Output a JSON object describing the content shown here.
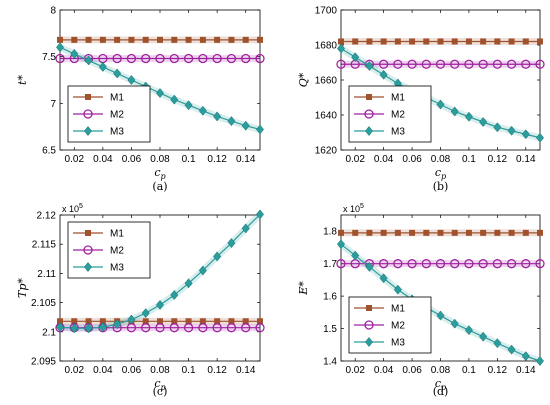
{
  "chart_data": [
    {
      "type": "line",
      "ylabel": "t*",
      "xlabel": "c_p",
      "caption": "(a)",
      "xlim": [
        0.01,
        0.15
      ],
      "ylim": [
        6.5,
        8
      ],
      "xticks": [
        0.02,
        0.04,
        0.06,
        0.08,
        0.1,
        0.12,
        0.14
      ],
      "xtick_labels": [
        "0.02",
        "0.04",
        "0.06",
        "0.08",
        "0.1",
        "0.12",
        "0.14"
      ],
      "yticks": [
        6.5,
        7,
        7.5,
        8
      ],
      "ytick_labels": [
        "6.5",
        "7",
        "7.5",
        "8"
      ],
      "exponent_label": "",
      "legend_position": "lower-left",
      "x": [
        0.01,
        0.02,
        0.03,
        0.04,
        0.05,
        0.06,
        0.07,
        0.08,
        0.09,
        0.1,
        0.11,
        0.12,
        0.13,
        0.14,
        0.15
      ],
      "series": [
        {
          "name": "M1",
          "color": "#a0522d",
          "marker": "square",
          "values": [
            7.68,
            7.68,
            7.68,
            7.68,
            7.68,
            7.68,
            7.68,
            7.68,
            7.68,
            7.68,
            7.68,
            7.68,
            7.68,
            7.68,
            7.68
          ]
        },
        {
          "name": "M2",
          "color": "#a020a0",
          "marker": "circle",
          "values": [
            7.48,
            7.48,
            7.48,
            7.48,
            7.48,
            7.48,
            7.48,
            7.48,
            7.48,
            7.48,
            7.48,
            7.48,
            7.48,
            7.48,
            7.48
          ]
        },
        {
          "name": "M3",
          "color": "#2a9d9d",
          "marker": "diamond",
          "values": [
            7.6,
            7.53,
            7.46,
            7.39,
            7.32,
            7.25,
            7.18,
            7.11,
            7.04,
            6.98,
            6.92,
            6.86,
            6.81,
            6.76,
            6.72
          ]
        }
      ]
    },
    {
      "type": "line",
      "ylabel": "Q*",
      "xlabel": "c_p",
      "caption": "(b)",
      "xlim": [
        0.01,
        0.15
      ],
      "ylim": [
        1620,
        1700
      ],
      "xticks": [
        0.02,
        0.04,
        0.06,
        0.08,
        0.1,
        0.12,
        0.14
      ],
      "xtick_labels": [
        "0.02",
        "0.04",
        "0.06",
        "0.08",
        "0.1",
        "0.12",
        "0.14"
      ],
      "yticks": [
        1620,
        1640,
        1660,
        1680,
        1700
      ],
      "ytick_labels": [
        "1620",
        "1640",
        "1660",
        "1680",
        "1700"
      ],
      "exponent_label": "",
      "legend_position": "lower-left",
      "x": [
        0.01,
        0.02,
        0.03,
        0.04,
        0.05,
        0.06,
        0.07,
        0.08,
        0.09,
        0.1,
        0.11,
        0.12,
        0.13,
        0.14,
        0.15
      ],
      "series": [
        {
          "name": "M1",
          "color": "#a0522d",
          "marker": "square",
          "values": [
            1682,
            1682,
            1682,
            1682,
            1682,
            1682,
            1682,
            1682,
            1682,
            1682,
            1682,
            1682,
            1682,
            1682,
            1682
          ]
        },
        {
          "name": "M2",
          "color": "#a020a0",
          "marker": "circle",
          "values": [
            1669,
            1669,
            1669,
            1669,
            1669,
            1669,
            1669,
            1669,
            1669,
            1669,
            1669,
            1669,
            1669,
            1669,
            1669
          ]
        },
        {
          "name": "M3",
          "color": "#2a9d9d",
          "marker": "diamond",
          "values": [
            1678,
            1673,
            1668,
            1663,
            1658,
            1654,
            1650,
            1646,
            1642,
            1639,
            1636,
            1633,
            1631,
            1629,
            1627
          ]
        }
      ]
    },
    {
      "type": "line",
      "ylabel": "Tp*",
      "xlabel": "c_p",
      "caption": "(c)",
      "xlim": [
        0.01,
        0.15
      ],
      "ylim": [
        2.095,
        2.12
      ],
      "xticks": [
        0.02,
        0.04,
        0.06,
        0.08,
        0.1,
        0.12,
        0.14
      ],
      "xtick_labels": [
        "0.02",
        "0.04",
        "0.06",
        "0.08",
        "0.1",
        "0.12",
        "0.14"
      ],
      "yticks": [
        2.095,
        2.1,
        2.105,
        2.11,
        2.115,
        2.12
      ],
      "ytick_labels": [
        "2.095",
        "2.1",
        "2.105",
        "2.11",
        "2.115",
        "2.12"
      ],
      "exponent_label": "x 10",
      "exponent_power": "5",
      "legend_position": "upper-left",
      "x": [
        0.01,
        0.02,
        0.03,
        0.04,
        0.05,
        0.06,
        0.07,
        0.08,
        0.09,
        0.1,
        0.11,
        0.12,
        0.13,
        0.14,
        0.15
      ],
      "series": [
        {
          "name": "M1",
          "color": "#a0522d",
          "marker": "square",
          "values": [
            2.1018,
            2.1018,
            2.1018,
            2.1018,
            2.1018,
            2.1018,
            2.1018,
            2.1018,
            2.1018,
            2.1018,
            2.1018,
            2.1018,
            2.1018,
            2.1018,
            2.1018
          ]
        },
        {
          "name": "M2",
          "color": "#a020a0",
          "marker": "circle",
          "values": [
            2.1007,
            2.1007,
            2.1007,
            2.1007,
            2.1007,
            2.1007,
            2.1007,
            2.1007,
            2.1007,
            2.1007,
            2.1007,
            2.1007,
            2.1007,
            2.1007,
            2.1007
          ]
        },
        {
          "name": "M3",
          "color": "#2a9d9d",
          "marker": "diamond",
          "values": [
            2.1008,
            2.1006,
            2.1006,
            2.1008,
            2.1013,
            2.1021,
            2.1032,
            2.1046,
            2.1063,
            2.1083,
            2.1105,
            2.1129,
            2.1152,
            2.1177,
            2.1201
          ]
        }
      ]
    },
    {
      "type": "line",
      "ylabel": "E*",
      "xlabel": "c_p",
      "caption": "(d)",
      "xlim": [
        0.01,
        0.15
      ],
      "ylim": [
        1.4,
        1.85
      ],
      "xticks": [
        0.02,
        0.04,
        0.06,
        0.08,
        0.1,
        0.12,
        0.14
      ],
      "xtick_labels": [
        "0.02",
        "0.04",
        "0.06",
        "0.08",
        "0.1",
        "0.12",
        "0.14"
      ],
      "yticks": [
        1.4,
        1.5,
        1.6,
        1.7,
        1.8
      ],
      "ytick_labels": [
        "1.4",
        "1.5",
        "1.6",
        "1.7",
        "1.8"
      ],
      "exponent_label": "x 10",
      "exponent_power": "5",
      "legend_position": "lower-left",
      "x": [
        0.01,
        0.02,
        0.03,
        0.04,
        0.05,
        0.06,
        0.07,
        0.08,
        0.09,
        0.1,
        0.11,
        0.12,
        0.13,
        0.14,
        0.15
      ],
      "series": [
        {
          "name": "M1",
          "color": "#a0522d",
          "marker": "square",
          "values": [
            1.795,
            1.795,
            1.795,
            1.795,
            1.795,
            1.795,
            1.795,
            1.795,
            1.795,
            1.795,
            1.795,
            1.795,
            1.795,
            1.795,
            1.795
          ]
        },
        {
          "name": "M2",
          "color": "#a020a0",
          "marker": "circle",
          "values": [
            1.7,
            1.7,
            1.7,
            1.7,
            1.7,
            1.7,
            1.7,
            1.7,
            1.7,
            1.7,
            1.7,
            1.7,
            1.7,
            1.7,
            1.7
          ]
        },
        {
          "name": "M3",
          "color": "#2a9d9d",
          "marker": "diamond",
          "values": [
            1.76,
            1.725,
            1.69,
            1.655,
            1.62,
            1.59,
            1.565,
            1.54,
            1.515,
            1.495,
            1.475,
            1.455,
            1.435,
            1.415,
            1.4
          ]
        }
      ]
    }
  ]
}
